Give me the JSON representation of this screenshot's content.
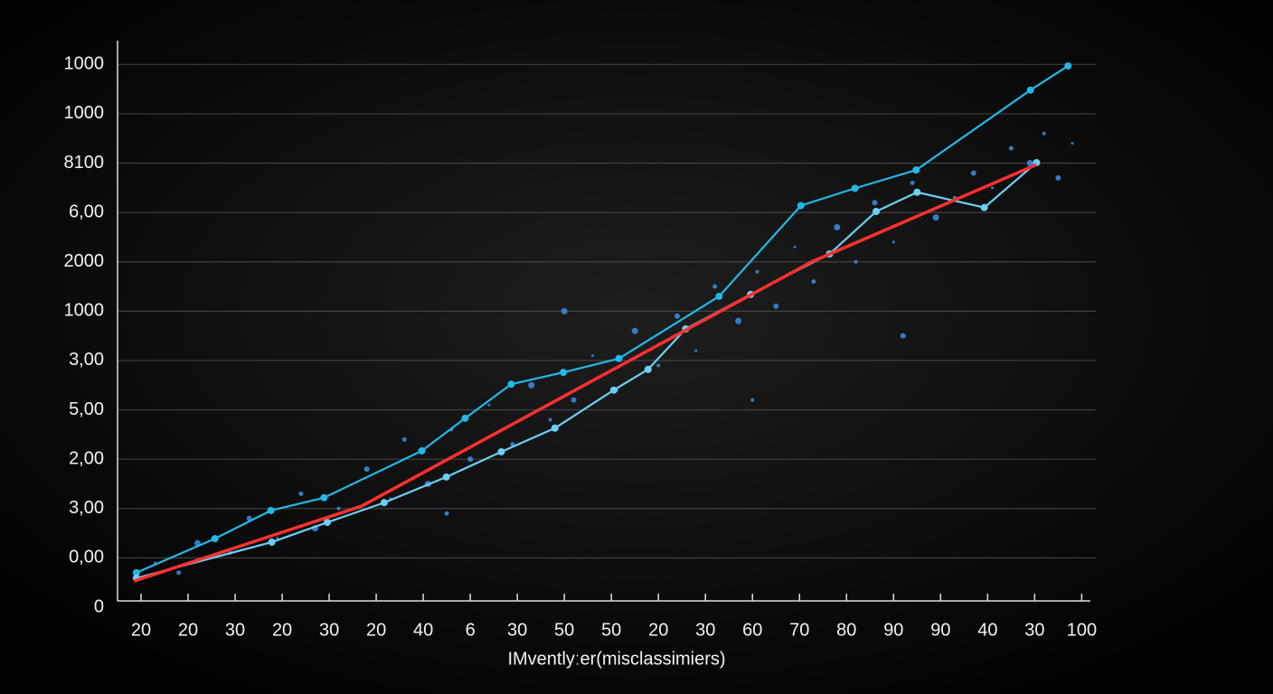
{
  "chart_data": {
    "type": "line",
    "x_label": "IMventlyːer(misclassimiers)",
    "xlim": [
      -0.5,
      20.3
    ],
    "xticks": [
      {
        "value": 0,
        "label": "20"
      },
      {
        "value": 1,
        "label": "20"
      },
      {
        "value": 2,
        "label": "30"
      },
      {
        "value": 3,
        "label": "20"
      },
      {
        "value": 4,
        "label": "30"
      },
      {
        "value": 5,
        "label": "20"
      },
      {
        "value": 6,
        "label": "40"
      },
      {
        "value": 7,
        "label": "6"
      },
      {
        "value": 8,
        "label": "30"
      },
      {
        "value": 9,
        "label": "50"
      },
      {
        "value": 10,
        "label": "50"
      },
      {
        "value": 11,
        "label": "20"
      },
      {
        "value": 12,
        "label": "30"
      },
      {
        "value": 13,
        "label": "60"
      },
      {
        "value": 14,
        "label": "70"
      },
      {
        "value": 15,
        "label": "80"
      },
      {
        "value": 16,
        "label": "90"
      },
      {
        "value": 17,
        "label": "90"
      },
      {
        "value": 18,
        "label": "40"
      },
      {
        "value": 19,
        "label": "30"
      },
      {
        "value": 20,
        "label": "100"
      }
    ],
    "ylim": [
      0,
      11.5
    ],
    "yticks": [
      {
        "value": 0,
        "label": "0"
      },
      {
        "value": 1,
        "label": "0,00"
      },
      {
        "value": 2,
        "label": "3,00"
      },
      {
        "value": 3,
        "label": "2,00"
      },
      {
        "value": 4,
        "label": "5,00"
      },
      {
        "value": 5,
        "label": "3,00"
      },
      {
        "value": 6,
        "label": "1000"
      },
      {
        "value": 7,
        "label": "2000"
      },
      {
        "value": 8,
        "label": "6,00"
      },
      {
        "value": 9,
        "label": "8100"
      },
      {
        "value": 10,
        "label": "1000"
      },
      {
        "value": 11,
        "label": "1000"
      }
    ],
    "grid": true,
    "series": [
      {
        "type": "scatter",
        "color": "#3a8ee6",
        "x": [
          0.3,
          0.8,
          1.2,
          1.9,
          2.3,
          2.9,
          3.4,
          3.7,
          4.2,
          4.8,
          5.3,
          5.6,
          6.1,
          6.6,
          7.0,
          7.4,
          7.9,
          8.3,
          8.7,
          9.2,
          9.6,
          10.1,
          10.5,
          11.0,
          11.4,
          11.8,
          12.2,
          12.7,
          13.1,
          13.5,
          13.9,
          14.3,
          14.8,
          15.2,
          15.6,
          16.0,
          16.4,
          16.9,
          17.3,
          17.7,
          18.1,
          18.5,
          18.9,
          19.2,
          19.5,
          19.8,
          6.5,
          9.0,
          13.0,
          16.2
        ],
        "y": [
          0.9,
          0.7,
          1.3,
          1.1,
          1.8,
          1.4,
          2.3,
          1.6,
          2.0,
          2.8,
          2.2,
          3.4,
          2.5,
          3.6,
          3.0,
          4.1,
          3.3,
          4.5,
          3.8,
          4.2,
          5.1,
          4.4,
          5.6,
          4.9,
          5.9,
          5.2,
          6.5,
          5.8,
          6.8,
          6.1,
          7.3,
          6.6,
          7.7,
          7.0,
          8.2,
          7.4,
          8.6,
          7.9,
          8.3,
          8.8,
          8.5,
          9.3,
          9.0,
          9.6,
          8.7,
          9.4,
          1.9,
          6.0,
          4.2,
          5.5
        ]
      },
      {
        "type": "line",
        "color": "#22b8e8",
        "markers": true,
        "x": [
          -0.1,
          1.57,
          2.76,
          3.89,
          5.97,
          6.89,
          7.87,
          8.98,
          10.16,
          12.29,
          14.03,
          15.18,
          16.48,
          18.91,
          19.71
        ],
        "y": [
          0.7,
          1.39,
          1.96,
          2.22,
          3.17,
          3.83,
          4.52,
          4.76,
          5.04,
          6.3,
          8.14,
          8.49,
          8.86,
          10.48,
          10.97
        ]
      },
      {
        "type": "line",
        "color": "#6cd0f5",
        "markers": true,
        "x": [
          -0.1,
          2.78,
          3.96,
          5.17,
          6.49,
          7.66,
          8.8,
          10.05,
          10.78,
          11.58,
          12.96,
          14.64,
          15.63,
          16.5,
          17.93,
          19.04
        ],
        "y": [
          0.59,
          1.32,
          1.72,
          2.12,
          2.64,
          3.15,
          3.63,
          4.4,
          4.82,
          5.64,
          6.34,
          7.16,
          8.02,
          8.41,
          8.1,
          9.01
        ]
      },
      {
        "type": "line",
        "color": "#ff3030",
        "markers": false,
        "x": [
          -0.15,
          4.69,
          10.43,
          14.26,
          19.04
        ],
        "y": [
          0.53,
          2.05,
          5.02,
          7.0,
          8.97
        ]
      }
    ]
  }
}
